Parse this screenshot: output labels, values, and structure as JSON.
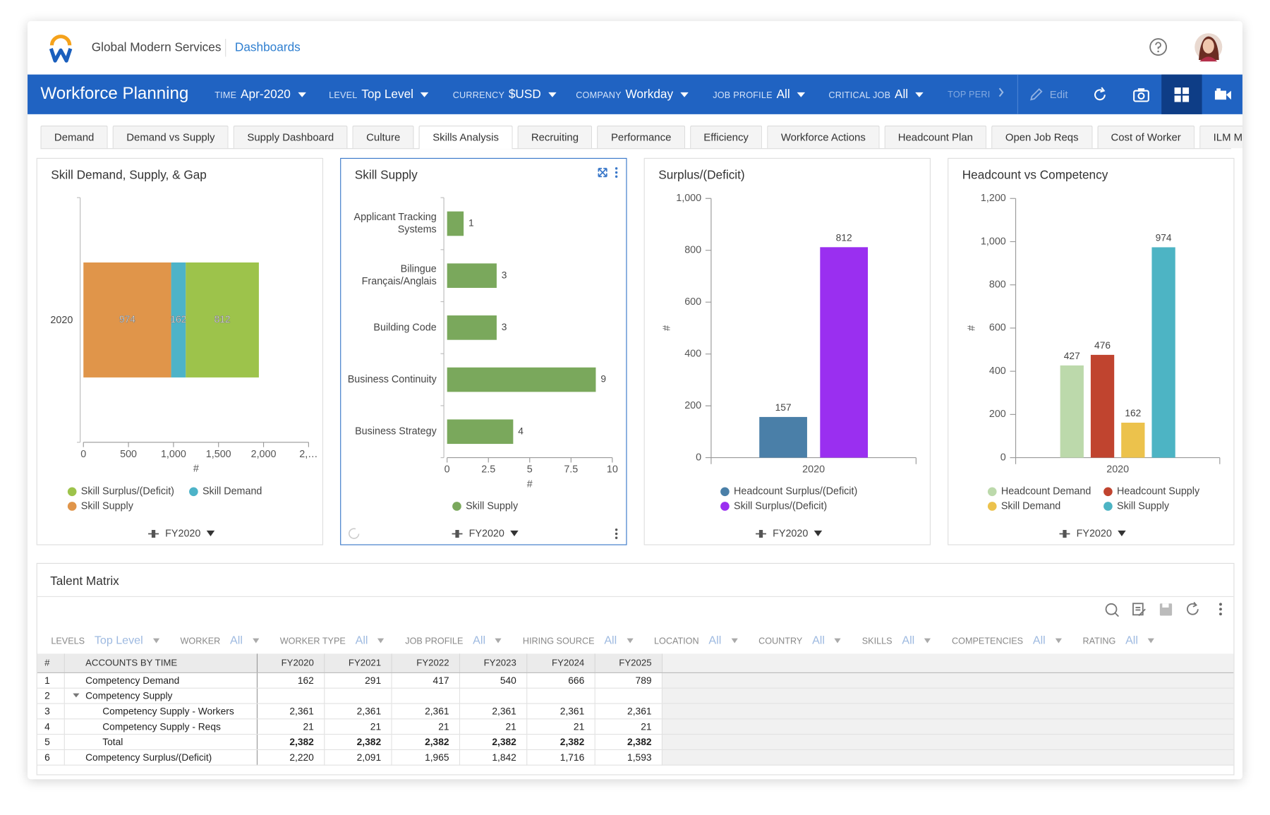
{
  "header": {
    "company": "Global Modern Services",
    "breadcrumb": "Dashboards"
  },
  "toolbar": {
    "title": "Workforce Planning",
    "filters": [
      {
        "label": "TIME",
        "value": "Apr-2020"
      },
      {
        "label": "LEVEL",
        "value": "Top Level"
      },
      {
        "label": "CURRENCY",
        "value": "$USD"
      },
      {
        "label": "COMPANY",
        "value": "Workday"
      },
      {
        "label": "JOB PROFILE",
        "value": "All"
      },
      {
        "label": "CRITICAL JOB",
        "value": "All"
      }
    ],
    "overflow": "TOP PERI",
    "edit": "Edit"
  },
  "tabs": {
    "items": [
      "Demand",
      "Demand vs Supply",
      "Supply Dashboard",
      "Culture",
      "Skills Analysis",
      "Recruiting",
      "Performance",
      "Efficiency",
      "Workforce Actions",
      "Headcount Plan",
      "Open Job Reqs",
      "Cost of Worker",
      "ILM Map"
    ],
    "active": 4
  },
  "chart_data": [
    {
      "type": "bar",
      "orientation": "horizontal",
      "stacked": true,
      "title": "Skill Demand, Supply, & Gap",
      "categories": [
        "2020"
      ],
      "series": [
        {
          "name": "Skill Supply",
          "color": "#e0954a",
          "values": [
            974
          ]
        },
        {
          "name": "Skill Demand",
          "color": "#4db3c8",
          "values": [
            162
          ]
        },
        {
          "name": "Skill Surplus/(Deficit)",
          "color": "#9dc34b",
          "values": [
            812
          ]
        }
      ],
      "data_labels": true,
      "xlabel": "#",
      "xlim": [
        0,
        2500
      ],
      "xticks": [
        0,
        500,
        {
          "value": 1000,
          "label": "1,000"
        },
        {
          "value": 1500,
          "label": "1,500"
        },
        {
          "value": 2000,
          "label": "2,000"
        },
        {
          "value": 2500,
          "label": "2,…"
        }
      ],
      "period": "FY2020"
    },
    {
      "type": "bar",
      "orientation": "horizontal",
      "stacked": false,
      "title": "Skill Supply",
      "categories": [
        "Applicant Tracking Systems",
        "Bilingue Français/Anglais",
        "Building Code",
        "Business Continuity",
        "Business Strategy"
      ],
      "series": [
        {
          "name": "Skill Supply",
          "color": "#7aa85c",
          "values": [
            1,
            3,
            3,
            9,
            4
          ]
        }
      ],
      "data_labels": true,
      "xlabel": "#",
      "xlim": [
        0,
        10
      ],
      "xticks": [
        0,
        2.5,
        5,
        7.5,
        10
      ],
      "period": "FY2020"
    },
    {
      "type": "bar",
      "orientation": "vertical",
      "stacked": false,
      "title": "Surplus/(Deficit)",
      "categories": [
        "2020"
      ],
      "series": [
        {
          "name": "Headcount Surplus/(Deficit)",
          "color": "#4a7fa8",
          "values": [
            157
          ]
        },
        {
          "name": "Skill Surplus/(Deficit)",
          "color": "#9a2ff0",
          "values": [
            812
          ]
        }
      ],
      "data_labels": true,
      "ylabel": "#",
      "ylim": [
        0,
        1000
      ],
      "yticks": [
        0,
        200,
        400,
        600,
        800,
        {
          "value": 1000,
          "label": "1,000"
        }
      ],
      "period": "FY2020"
    },
    {
      "type": "bar",
      "orientation": "vertical",
      "stacked": false,
      "title": "Headcount vs Competency",
      "categories": [
        "2020"
      ],
      "series": [
        {
          "name": "Headcount Demand",
          "color": "#bcd9ab",
          "values": [
            427
          ]
        },
        {
          "name": "Headcount Supply",
          "color": "#c0442f",
          "values": [
            476
          ]
        },
        {
          "name": "Skill Demand",
          "color": "#ecc24c",
          "values": [
            162
          ]
        },
        {
          "name": "Skill Supply",
          "color": "#4db4c4",
          "values": [
            974
          ]
        }
      ],
      "data_labels": true,
      "ylabel": "#",
      "ylim": [
        0,
        1200
      ],
      "yticks": [
        0,
        200,
        400,
        600,
        800,
        {
          "value": 1000,
          "label": "1,000"
        },
        {
          "value": 1200,
          "label": "1,200"
        }
      ],
      "period": "FY2020"
    }
  ],
  "talent_matrix": {
    "title": "Talent Matrix",
    "filters": [
      {
        "label": "LEVELS",
        "value": "Top Level"
      },
      {
        "label": "WORKER",
        "value": "All"
      },
      {
        "label": "WORKER TYPE",
        "value": "All"
      },
      {
        "label": "JOB PROFILE",
        "value": "All"
      },
      {
        "label": "HIRING SOURCE",
        "value": "All"
      },
      {
        "label": "LOCATION",
        "value": "All"
      },
      {
        "label": "COUNTRY",
        "value": "All"
      },
      {
        "label": "SKILLS",
        "value": "All"
      },
      {
        "label": "COMPETENCIES",
        "value": "All"
      },
      {
        "label": "RATING",
        "value": "All"
      }
    ],
    "columns": [
      "#",
      "ACCOUNTS BY TIME",
      "FY2020",
      "FY2021",
      "FY2022",
      "FY2023",
      "FY2024",
      "FY2025"
    ],
    "rows": [
      [
        1,
        "Competency Demand",
        "162",
        "291",
        "417",
        "540",
        "666",
        "789"
      ],
      [
        2,
        "Competency Supply",
        null,
        null,
        null,
        null,
        null,
        null
      ],
      [
        3,
        "Competency Supply - Workers",
        "2,361",
        "2,361",
        "2,361",
        "2,361",
        "2,361",
        "2,361"
      ],
      [
        4,
        "Competency Supply - Reqs",
        "21",
        "21",
        "21",
        "21",
        "21",
        "21"
      ],
      [
        5,
        "Total",
        "2,382",
        "2,382",
        "2,382",
        "2,382",
        "2,382",
        "2,382"
      ],
      [
        6,
        "Competency Surplus/(Deficit)",
        "2,220",
        "2,091",
        "1,965",
        "1,842",
        "1,716",
        "1,593"
      ]
    ]
  }
}
